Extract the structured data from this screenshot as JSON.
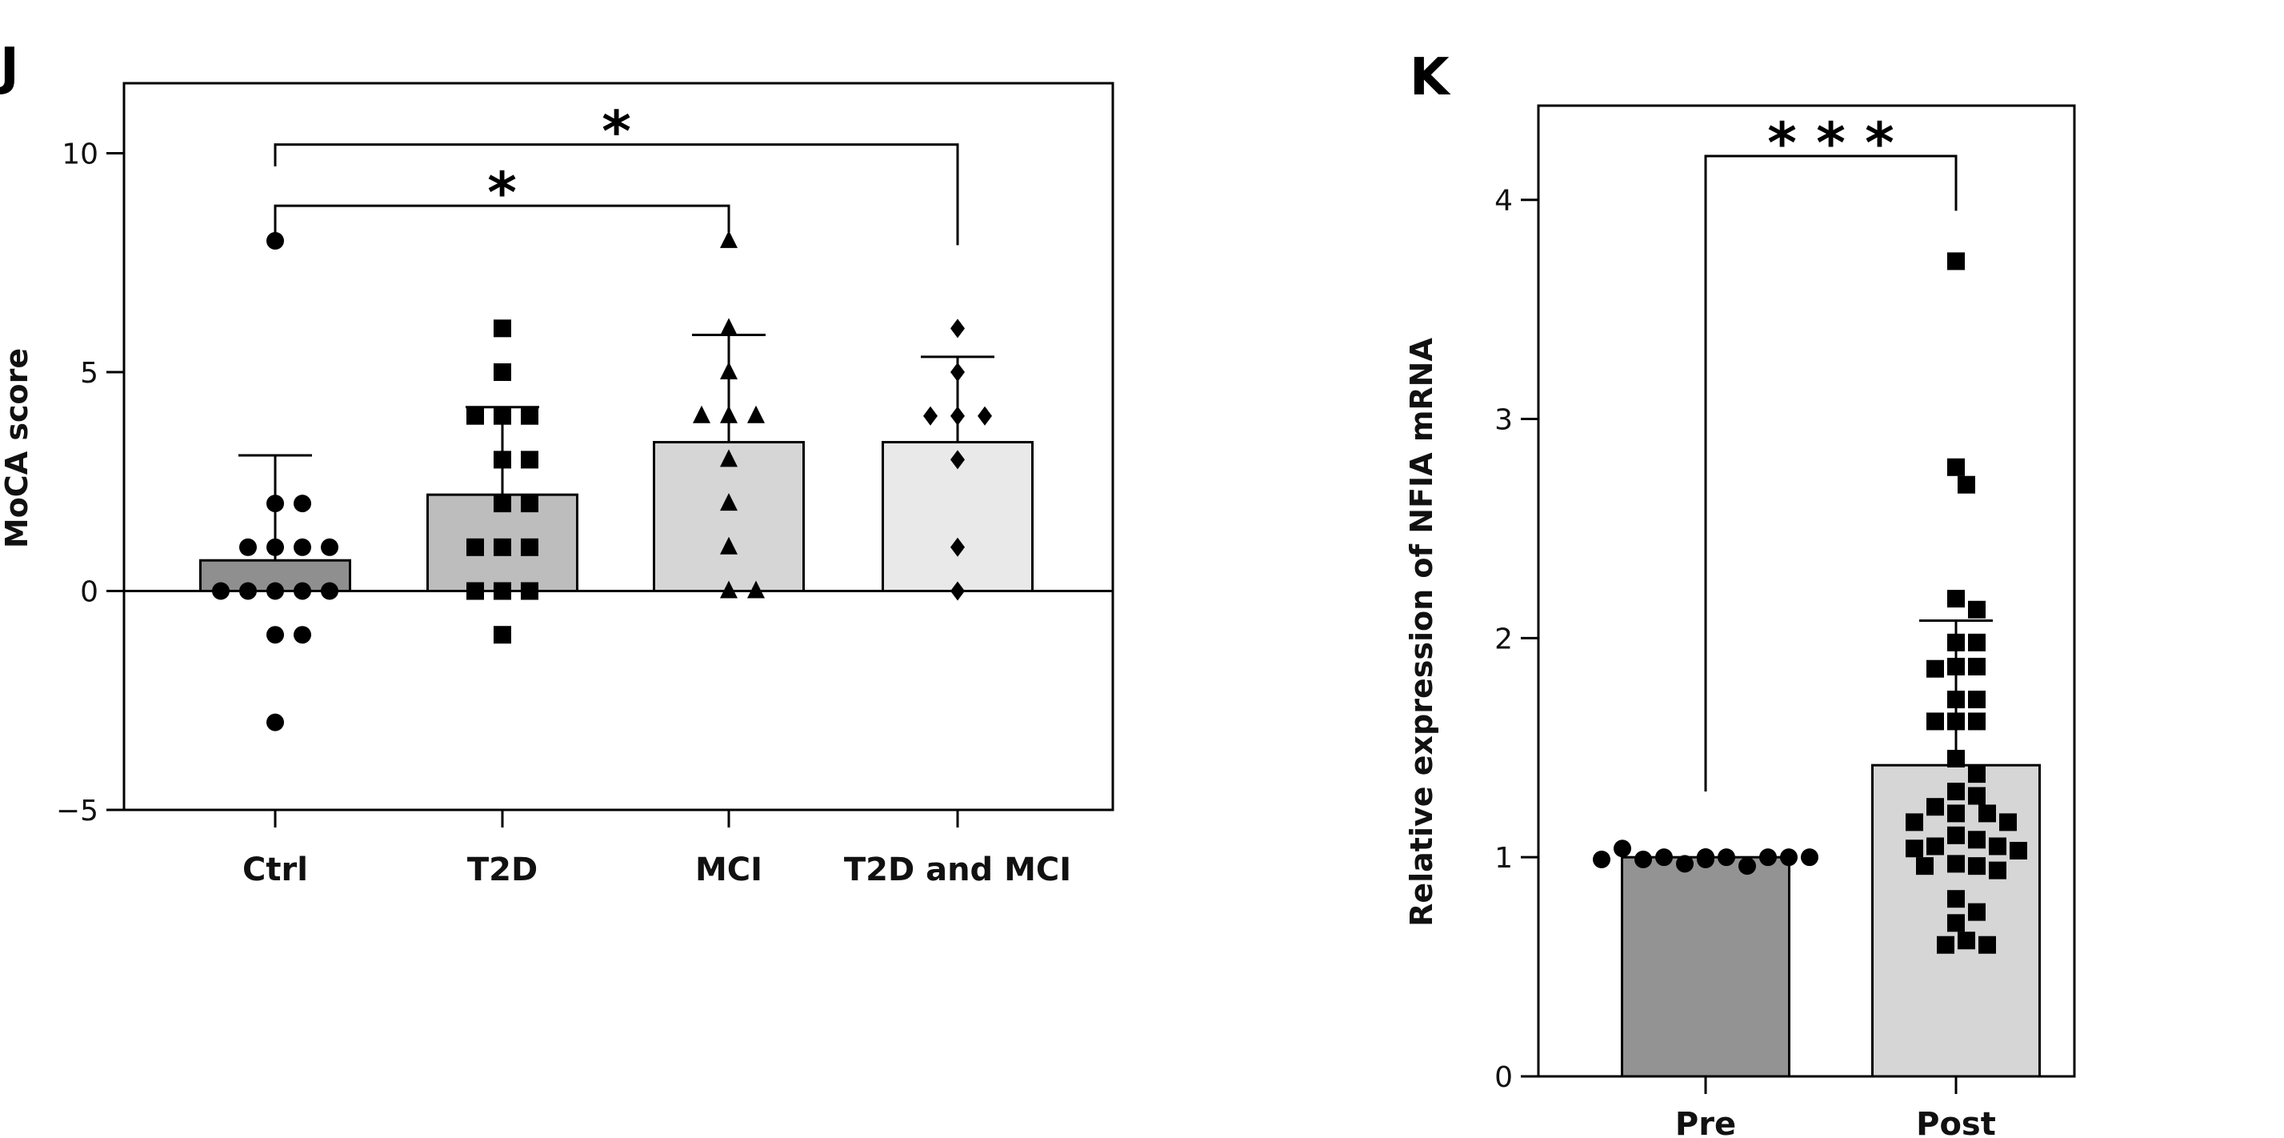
{
  "chart_data": [
    {
      "panel_label": "J",
      "type": "bar",
      "ylabel": "MoCA score",
      "xlabel": "",
      "ylim": [
        -5,
        11.6
      ],
      "yticks": [
        -5,
        0,
        5,
        10
      ],
      "ytick_labels": [
        "−5",
        "0",
        "5",
        "10"
      ],
      "grid": false,
      "categories": [
        "Ctrl",
        "T2D",
        "MCI",
        "T2D and MCI"
      ],
      "values": [
        0.7,
        2.2,
        3.4,
        3.4
      ],
      "error_upper": [
        3.1,
        4.2,
        5.85,
        5.35
      ],
      "bar_colors": [
        "#8f8f8f",
        "#bdbdbd",
        "#d6d6d6",
        "#e9e9e9"
      ],
      "markers": [
        "circle",
        "square",
        "triangle",
        "diamond"
      ],
      "points": [
        [
          8,
          2,
          2,
          1,
          1,
          1,
          1,
          0,
          0,
          0,
          0,
          0,
          -1,
          -1,
          -3
        ],
        [
          6,
          5,
          4,
          4,
          4,
          3,
          3,
          2,
          2,
          1,
          1,
          1,
          0,
          0,
          0,
          -1
        ],
        [
          8,
          6,
          5,
          4,
          4,
          4,
          3,
          2,
          1,
          0,
          0
        ],
        [
          6,
          5,
          4,
          4,
          4,
          3,
          1,
          0
        ]
      ],
      "significance": [
        {
          "from": "Ctrl",
          "to": "MCI",
          "label": "*",
          "y": 8.8,
          "drop_from": 8.2,
          "drop_to": 8.2
        },
        {
          "from": "Ctrl",
          "to": "T2D and MCI",
          "label": "*",
          "y": 10.2,
          "drop_from": 9.7,
          "drop_to": 7.9
        }
      ]
    },
    {
      "panel_label": "K",
      "type": "bar",
      "ylabel": "Relative expression of NFIA mRNA",
      "xlabel": "",
      "ylim": [
        0,
        4.43
      ],
      "yticks": [
        0,
        1,
        2,
        3,
        4
      ],
      "ytick_labels": [
        "0",
        "1",
        "2",
        "3",
        "4"
      ],
      "grid": false,
      "categories": [
        "Pre",
        "Post"
      ],
      "values": [
        1.0,
        1.42
      ],
      "error_upper": [
        1.0,
        2.08
      ],
      "bar_colors": [
        "#939393",
        "#d6d6d6"
      ],
      "markers": [
        "circle",
        "square"
      ],
      "points": [
        [
          1.0,
          1.0,
          0.97,
          0.96,
          1.0,
          1.0,
          0.99,
          1.0,
          1.04,
          1.0,
          0.99,
          1.0,
          1.0,
          0.99,
          1.0,
          1.0
        ],
        [
          3.72,
          2.78,
          2.7,
          2.18,
          2.13,
          1.98,
          1.98,
          1.87,
          1.87,
          1.86,
          1.72,
          1.72,
          1.62,
          1.62,
          1.62,
          1.45,
          1.38,
          1.3,
          1.28,
          1.23,
          1.2,
          1.2,
          1.16,
          1.16,
          1.1,
          1.08,
          1.05,
          1.05,
          1.04,
          1.03,
          0.97,
          0.96,
          0.96,
          0.94,
          0.81,
          0.75,
          0.7,
          0.62,
          0.6,
          0.6
        ]
      ],
      "significance": [
        {
          "from": "Pre",
          "to": "Post",
          "label": "* * *",
          "y": 4.2,
          "drop_from": 1.3,
          "drop_to": 3.95
        }
      ]
    }
  ]
}
